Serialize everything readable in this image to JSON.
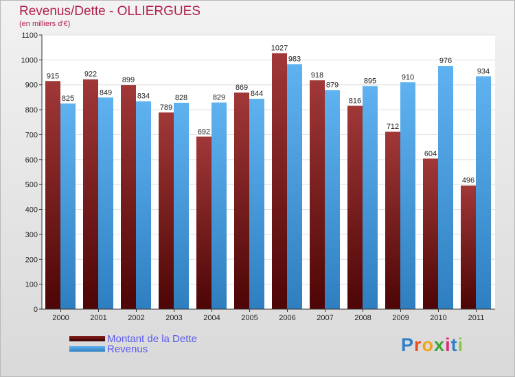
{
  "chart_data": {
    "type": "bar",
    "title": "Revenus/Dette - OLLIERGUES",
    "subtitle": "(en milliers d'€)",
    "categories": [
      "2000",
      "2001",
      "2002",
      "2003",
      "2004",
      "2005",
      "2006",
      "2007",
      "2008",
      "2009",
      "2010",
      "2011"
    ],
    "series": [
      {
        "name": "Montant de la Dette",
        "values": [
          915,
          922,
          899,
          789,
          692,
          869,
          1027,
          918,
          816,
          712,
          604,
          496
        ],
        "color": "#7a1515"
      },
      {
        "name": "Revenus",
        "values": [
          825,
          849,
          834,
          828,
          829,
          844,
          983,
          879,
          895,
          910,
          976,
          934
        ],
        "color": "#4aa3e8"
      }
    ],
    "ylim": [
      0,
      1100
    ],
    "yticks": [
      0,
      100,
      200,
      300,
      400,
      500,
      600,
      700,
      800,
      900,
      1000,
      1100
    ],
    "legend_position": "bottom-left",
    "grid": true
  },
  "logo": {
    "text": "Proxiti",
    "colors": [
      "#2f7fc8",
      "#e84f1c",
      "#f2a31a",
      "#3fa535",
      "#e0287d",
      "#2f7fc8",
      "#8dc63f"
    ]
  }
}
